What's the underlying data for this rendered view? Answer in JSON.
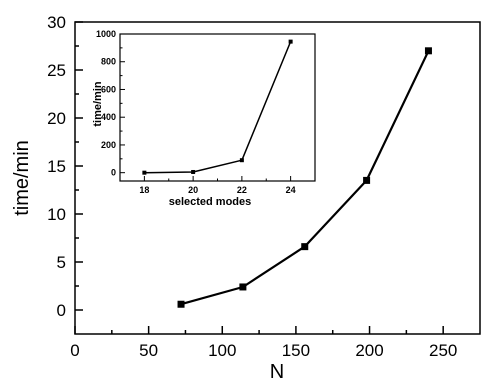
{
  "chart_data": [
    {
      "type": "line",
      "title": "",
      "xlabel": "N",
      "ylabel": "time/min",
      "xlim": [
        0,
        275
      ],
      "ylim": [
        -2.5,
        30
      ],
      "xticks": [
        0,
        50,
        100,
        150,
        200,
        250
      ],
      "yticks": [
        0,
        5,
        10,
        15,
        20,
        25,
        30
      ],
      "grid": false,
      "marker": "square",
      "series": [
        {
          "x": [
            72,
            114,
            156,
            198,
            240
          ],
          "y": [
            0.6,
            2.4,
            6.6,
            13.5,
            27.0
          ]
        }
      ]
    },
    {
      "type": "line",
      "title": "",
      "xlabel": "selected modes",
      "ylabel": "time/min",
      "xlim": [
        17,
        25
      ],
      "ylim": [
        -60,
        1000
      ],
      "xticks": [
        18,
        20,
        22,
        24
      ],
      "yticks": [
        0,
        200,
        400,
        600,
        800,
        1000
      ],
      "grid": false,
      "marker": "square",
      "placement": "inset-top-left",
      "series": [
        {
          "x": [
            18,
            20,
            22,
            24
          ],
          "y": [
            0,
            5,
            90,
            945
          ]
        }
      ]
    }
  ]
}
